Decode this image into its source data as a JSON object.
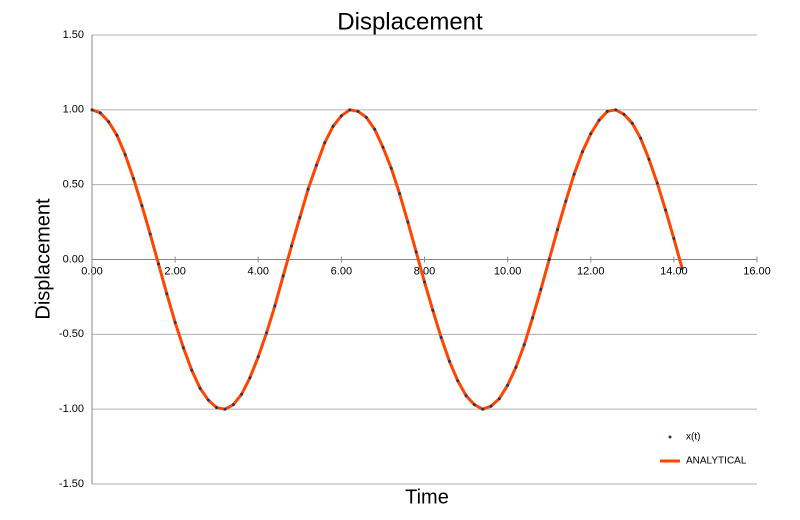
{
  "chart_data": {
    "type": "line",
    "title": "Displacement",
    "x_label": "Time",
    "y_label": "Displacement",
    "x": [
      0,
      0.2,
      0.4,
      0.6,
      0.8,
      1.0,
      1.2,
      1.4,
      1.6,
      1.8,
      2.0,
      2.2,
      2.4,
      2.6,
      2.8,
      3.0,
      3.2,
      3.4,
      3.6,
      3.8,
      4.0,
      4.2,
      4.4,
      4.6,
      4.8,
      5.0,
      5.2,
      5.4,
      5.6,
      5.8,
      6.0,
      6.2,
      6.4,
      6.6,
      6.8,
      7.0,
      7.2,
      7.4,
      7.6,
      7.8,
      8.0,
      8.2,
      8.4,
      8.6,
      8.8,
      9.0,
      9.2,
      9.4,
      9.6,
      9.8,
      10.0,
      10.2,
      10.4,
      10.6,
      10.8,
      11.0,
      11.2,
      11.4,
      11.6,
      11.8,
      12.0,
      12.2,
      12.4,
      12.6,
      12.8,
      13.0,
      13.2,
      13.4,
      13.6,
      13.8,
      14.0,
      14.2
    ],
    "series": [
      {
        "name": "x(t)",
        "color": "#1f3864",
        "style": "markers",
        "values": [
          1.0,
          0.98,
          0.92,
          0.83,
          0.7,
          0.54,
          0.36,
          0.17,
          -0.03,
          -0.23,
          -0.42,
          -0.59,
          -0.74,
          -0.86,
          -0.94,
          -0.99,
          -1.0,
          -0.97,
          -0.9,
          -0.79,
          -0.65,
          -0.49,
          -0.31,
          -0.11,
          0.09,
          0.28,
          0.47,
          0.63,
          0.78,
          0.89,
          0.96,
          1.0,
          0.99,
          0.95,
          0.87,
          0.75,
          0.61,
          0.44,
          0.25,
          0.05,
          -0.15,
          -0.34,
          -0.52,
          -0.68,
          -0.81,
          -0.91,
          -0.97,
          -1.0,
          -0.98,
          -0.93,
          -0.84,
          -0.72,
          -0.57,
          -0.39,
          -0.2,
          0.0,
          0.2,
          0.39,
          0.57,
          0.72,
          0.84,
          0.93,
          0.99,
          1.0,
          0.97,
          0.91,
          0.81,
          0.67,
          0.51,
          0.33,
          0.14,
          -0.06
        ]
      },
      {
        "name": "ANALYTICAL",
        "color": "#ff4500",
        "style": "line",
        "values": [
          1.0,
          0.98,
          0.92,
          0.83,
          0.7,
          0.54,
          0.36,
          0.17,
          -0.03,
          -0.23,
          -0.42,
          -0.59,
          -0.74,
          -0.86,
          -0.94,
          -0.99,
          -1.0,
          -0.97,
          -0.9,
          -0.79,
          -0.65,
          -0.49,
          -0.31,
          -0.11,
          0.09,
          0.28,
          0.47,
          0.63,
          0.78,
          0.89,
          0.96,
          1.0,
          0.99,
          0.95,
          0.87,
          0.75,
          0.61,
          0.44,
          0.25,
          0.05,
          -0.15,
          -0.34,
          -0.52,
          -0.68,
          -0.81,
          -0.91,
          -0.97,
          -1.0,
          -0.98,
          -0.93,
          -0.84,
          -0.72,
          -0.57,
          -0.39,
          -0.2,
          0.0,
          0.2,
          0.39,
          0.57,
          0.72,
          0.84,
          0.93,
          0.99,
          1.0,
          0.97,
          0.91,
          0.81,
          0.67,
          0.51,
          0.33,
          0.14,
          -0.06
        ]
      }
    ],
    "xlim": [
      0,
      16
    ],
    "xticks": [
      {
        "value": 0,
        "label": "0.00"
      },
      {
        "value": 2,
        "label": "2.00"
      },
      {
        "value": 4,
        "label": "4.00"
      },
      {
        "value": 6,
        "label": "6.00"
      },
      {
        "value": 8,
        "label": "8.00"
      },
      {
        "value": 10,
        "label": "10.00"
      },
      {
        "value": 12,
        "label": "12.00"
      },
      {
        "value": 14,
        "label": "14.00"
      },
      {
        "value": 16,
        "label": "16.00"
      }
    ],
    "ylim": [
      -1.5,
      1.5
    ],
    "yticks": [
      {
        "value": -1.5,
        "label": "-1.50"
      },
      {
        "value": -1,
        "label": "-1.00"
      },
      {
        "value": -0.5,
        "label": "-0.50"
      },
      {
        "value": 0,
        "label": "0.00"
      },
      {
        "value": 0.5,
        "label": "0.50"
      },
      {
        "value": 1,
        "label": "1.00"
      },
      {
        "value": 1.5,
        "label": "1.50"
      }
    ],
    "grid": true,
    "legend": "lower-right"
  }
}
